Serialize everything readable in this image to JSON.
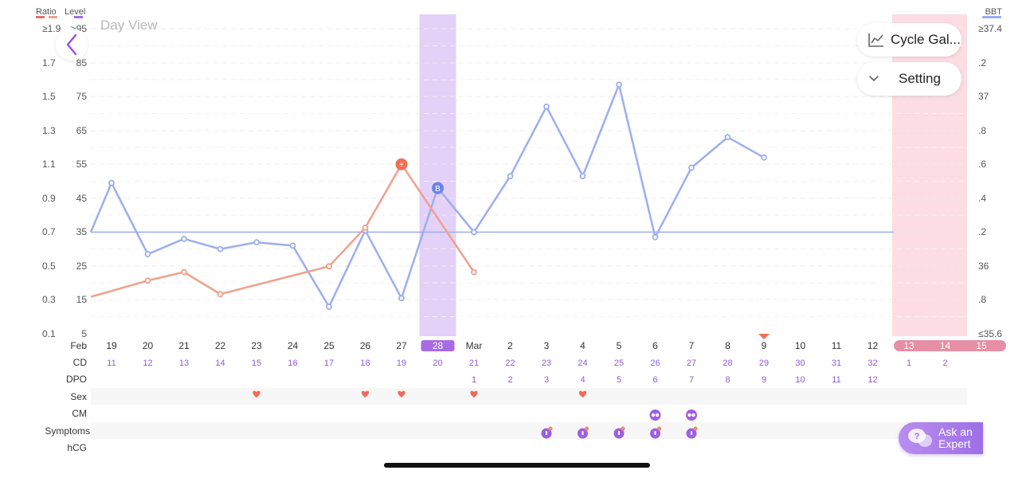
{
  "legend": {
    "ratio_label": "Ratio",
    "level_label": "Level",
    "bbt_label": "BBT"
  },
  "day_view_label": "Day View",
  "buttons": {
    "cycle_gallery": "Cycle Gal...",
    "setting": "Setting",
    "ask_expert_line1": "Ask an",
    "ask_expert_line2": "Expert"
  },
  "colors": {
    "bbt_line": "#9daef0",
    "lh_line": "#f0a08c",
    "ovulation_band": "#e3d1f8",
    "period_band": "#fbdde3",
    "date_highlight": "#a86be6",
    "cd_text": "#8e5bd6",
    "heart": "#ef6a5a",
    "positive_marker": "#ee7055",
    "bbt_marker": "#6c84e6"
  },
  "axes": {
    "ratio_ticks": [
      "≥1.9",
      "1.7",
      "1.5",
      "1.3",
      "1.1",
      "0.9",
      "0.7",
      "0.5",
      "0.3",
      "0.1"
    ],
    "level_ticks": [
      ">95",
      "85",
      "75",
      "65",
      "55",
      "45",
      "35",
      "25",
      "15",
      "5"
    ],
    "bbt_ticks": [
      "≥37.4",
      ".2",
      "37",
      ".8",
      ".6",
      ".4",
      ".2",
      "36",
      ".8",
      "≤35.6"
    ]
  },
  "row_labels": {
    "month": "Feb",
    "cd": "CD",
    "dpo": "DPO",
    "sex": "Sex",
    "cm": "CM",
    "symptoms": "Symptoms",
    "hcg": "hCG"
  },
  "dates": [
    "19",
    "20",
    "21",
    "22",
    "23",
    "24",
    "25",
    "26",
    "27",
    "28",
    "Mar",
    "2",
    "3",
    "4",
    "5",
    "6",
    "7",
    "8",
    "9",
    "10",
    "11",
    "12",
    "13",
    "14",
    "15"
  ],
  "cd": [
    "11",
    "12",
    "13",
    "14",
    "15",
    "16",
    "17",
    "18",
    "19",
    "20",
    "21",
    "22",
    "23",
    "24",
    "25",
    "26",
    "27",
    "28",
    "29",
    "30",
    "31",
    "32",
    "1",
    "2",
    ""
  ],
  "dpo": [
    "",
    "",
    "",
    "",
    "",
    "",
    "",
    "",
    "",
    "",
    "1",
    "2",
    "3",
    "4",
    "5",
    "6",
    "7",
    "8",
    "9",
    "10",
    "11",
    "12",
    "",
    "",
    ""
  ],
  "chart_data": {
    "type": "line",
    "x": [
      "Feb 19",
      "Feb 20",
      "Feb 21",
      "Feb 22",
      "Feb 23",
      "Feb 24",
      "Feb 25",
      "Feb 26",
      "Feb 27",
      "Feb 28",
      "Mar 1",
      "Mar 2",
      "Mar 3",
      "Mar 4",
      "Mar 5",
      "Mar 6",
      "Mar 7",
      "Mar 8",
      "Mar 9",
      "Mar 10",
      "Mar 11",
      "Mar 12",
      "Mar 13",
      "Mar 14",
      "Mar 15"
    ],
    "y_left_label": "Level",
    "y_left_ticks": [
      5,
      15,
      25,
      35,
      45,
      55,
      65,
      75,
      85,
      95
    ],
    "y_left_ratio_ticks": [
      0.1,
      0.3,
      0.5,
      0.7,
      0.9,
      1.1,
      1.3,
      1.5,
      1.7,
      1.9
    ],
    "y_right_label": "BBT",
    "y_right_range": [
      35.6,
      37.4
    ],
    "series": [
      {
        "name": "BBT",
        "axis": "right",
        "values": [
          36.49,
          36.07,
          36.16,
          36.1,
          36.14,
          36.12,
          35.76,
          36.21,
          35.81,
          36.46,
          36.2,
          36.53,
          36.94,
          36.53,
          37.07,
          36.17,
          36.58,
          36.76,
          36.64,
          null,
          null,
          null,
          null,
          null,
          null
        ],
        "markers": [
          {
            "x": "Feb 28",
            "label": "B"
          }
        ]
      },
      {
        "name": "Level",
        "axis": "left",
        "values": [
          null,
          20.7,
          23.2,
          16.7,
          null,
          null,
          24.9,
          36.3,
          55.0,
          null,
          23.2,
          null,
          null,
          null,
          null,
          null,
          null,
          null,
          null,
          null,
          null,
          null,
          null,
          null,
          null
        ],
        "markers": [
          {
            "x": "Feb 27",
            "label": "+"
          }
        ]
      }
    ],
    "coverline_bbt": 36.2,
    "ovulation_day": "Feb 28",
    "today": "Mar 9",
    "period_days": [
      "Mar 13",
      "Mar 14",
      "Mar 15"
    ],
    "sex_days": [
      "Feb 23",
      "Feb 26",
      "Feb 27",
      "Mar 1",
      "Mar 4"
    ],
    "cm_days": [
      "Mar 6",
      "Mar 7"
    ],
    "symptom_days": [
      "Mar 3",
      "Mar 4",
      "Mar 5",
      "Mar 6",
      "Mar 7"
    ],
    "hcg_days": [],
    "grid": true
  }
}
